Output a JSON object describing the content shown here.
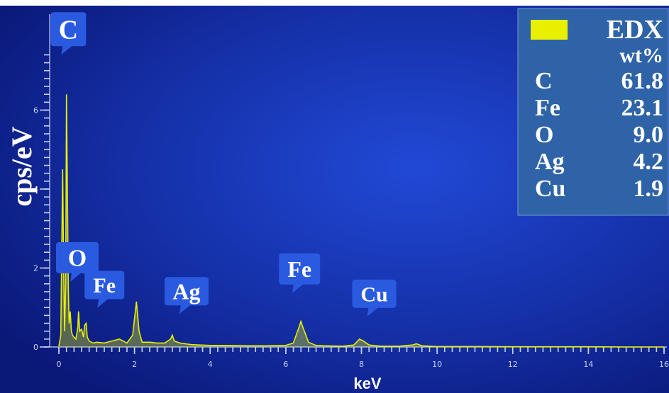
{
  "colors": {
    "background_outer": "#0a1a7a",
    "background_inner": "#1a3fc8",
    "spectrum": "#e8f000",
    "peak_label_bg": "#2a5ae0",
    "legend_bg": "#2e63a8",
    "axis": "#c8d2f0"
  },
  "chart_data": {
    "type": "line",
    "title": "",
    "xlabel": "keV",
    "ylabel": "cps/eV",
    "xlim": [
      0,
      16
    ],
    "ylim": [
      0,
      8
    ],
    "x_ticks": [
      "0",
      "2",
      "4",
      "6",
      "8",
      "10",
      "12",
      "14",
      "16"
    ],
    "y_ticks": [
      "0",
      "2",
      "4",
      "6"
    ],
    "series": [
      {
        "name": "EDX",
        "x": [
          0.0,
          0.05,
          0.1,
          0.12,
          0.15,
          0.18,
          0.2,
          0.25,
          0.27,
          0.3,
          0.33,
          0.36,
          0.4,
          0.45,
          0.5,
          0.52,
          0.55,
          0.6,
          0.65,
          0.68,
          0.72,
          0.75,
          0.8,
          0.9,
          1.0,
          1.2,
          1.4,
          1.6,
          1.8,
          1.95,
          2.05,
          2.12,
          2.2,
          2.4,
          2.6,
          2.8,
          2.95,
          3.0,
          3.05,
          3.2,
          3.5,
          4.0,
          4.5,
          5.0,
          5.5,
          6.0,
          6.2,
          6.35,
          6.4,
          6.45,
          6.6,
          6.8,
          7.0,
          7.5,
          7.8,
          7.95,
          8.05,
          8.2,
          8.5,
          9.0,
          9.35,
          9.45,
          9.6,
          10.0,
          11.0,
          12.0,
          13.0,
          14.0,
          15.0,
          16.0
        ],
        "y": [
          0.02,
          0.3,
          4.5,
          2.5,
          0.4,
          1.6,
          6.4,
          1.5,
          0.6,
          0.9,
          0.4,
          0.3,
          0.25,
          0.2,
          0.5,
          0.9,
          0.4,
          0.45,
          0.25,
          0.55,
          0.6,
          0.25,
          0.15,
          0.1,
          0.12,
          0.1,
          0.15,
          0.2,
          0.1,
          0.3,
          1.15,
          0.4,
          0.12,
          0.12,
          0.1,
          0.1,
          0.2,
          0.3,
          0.15,
          0.1,
          0.06,
          0.04,
          0.04,
          0.03,
          0.03,
          0.04,
          0.1,
          0.5,
          0.65,
          0.5,
          0.12,
          0.04,
          0.03,
          0.02,
          0.05,
          0.2,
          0.15,
          0.05,
          0.02,
          0.02,
          0.05,
          0.08,
          0.03,
          0.01,
          0.01,
          0.005,
          0.005,
          0.005,
          0.0,
          0.0
        ]
      }
    ],
    "peak_labels": [
      {
        "text": "C",
        "x": 0.25,
        "y": 6.4
      },
      {
        "text": "O",
        "x": 0.3,
        "y": 0.9
      },
      {
        "text": "Fe",
        "x": 0.68,
        "y": 0.6
      },
      {
        "text": "Ag",
        "x": 3.0,
        "y": 0.3
      },
      {
        "text": "Fe",
        "x": 6.4,
        "y": 0.65
      },
      {
        "text": "Cu",
        "x": 8.0,
        "y": 0.2
      }
    ],
    "legend": {
      "placement": "top-right",
      "title": "EDX",
      "unit": "wt%",
      "rows": [
        {
          "element": "C",
          "value": "61.8"
        },
        {
          "element": "Fe",
          "value": "23.1"
        },
        {
          "element": "O",
          "value": "9.0"
        },
        {
          "element": "Ag",
          "value": "4.2"
        },
        {
          "element": "Cu",
          "value": "1.9"
        }
      ]
    }
  }
}
